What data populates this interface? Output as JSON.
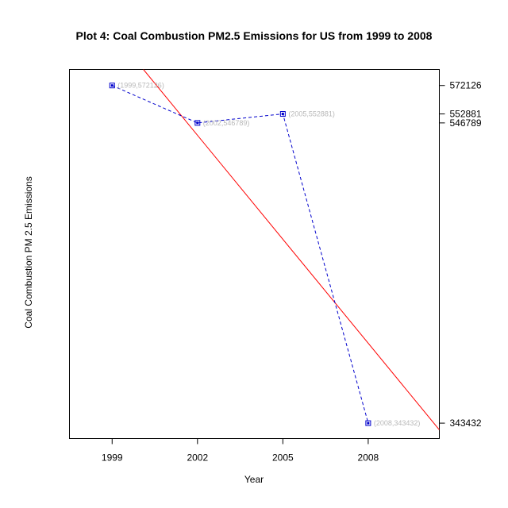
{
  "chart_data": {
    "type": "line",
    "title": "Plot 4: Coal Combustion PM2.5 Emissions for US from 1999 to 2008",
    "xlabel": "Year",
    "ylabel": "Coal Combustion PM 2.5 Emissions",
    "x": [
      1999,
      2002,
      2005,
      2008
    ],
    "x_ticks": [
      "1999",
      "2002",
      "2005",
      "2008"
    ],
    "xlim": [
      1997.5,
      2010.5
    ],
    "y_ticks": [
      "572126",
      "552881",
      "546789",
      "343432"
    ],
    "y_axis_side": "right",
    "ylim": [
      333000,
      583000
    ],
    "grid": false,
    "series": [
      {
        "values": [
          572126,
          546789,
          552881,
          343432
        ],
        "point_labels": [
          "(1999,572126)",
          "(2002,546789)",
          "(2005,552881)",
          "(2008,343432)"
        ],
        "color": "#0000cc",
        "line_style": "dashed",
        "marker": "square"
      }
    ],
    "trend_line": {
      "color": "#ff0000",
      "start": [
        2000.1,
        583000
      ],
      "end": [
        2010.5,
        338900
      ]
    }
  }
}
